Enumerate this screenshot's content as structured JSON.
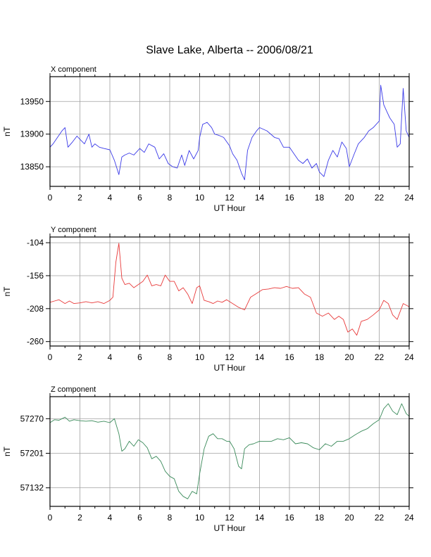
{
  "title": "Slave Lake, Alberta -- 2006/08/21",
  "chart_data": [
    {
      "type": "line",
      "panel_title": "X component",
      "xlabel": "UT Hour",
      "ylabel": "nT",
      "xlim": [
        0,
        24
      ],
      "ylim": [
        13820,
        13988
      ],
      "x_ticks": [
        0,
        2,
        4,
        6,
        8,
        10,
        12,
        14,
        16,
        18,
        20,
        22,
        24
      ],
      "y_ticks": [
        13850,
        13900,
        13950
      ],
      "grid": true,
      "color": "#3a3ae8",
      "series": [
        {
          "x": [
            0,
            0.2,
            0.5,
            0.8,
            1.0,
            1.2,
            1.5,
            1.8,
            2.0,
            2.3,
            2.6,
            2.8,
            3.0,
            3.3,
            3.6,
            4.0,
            4.3,
            4.6,
            4.8,
            5.0,
            5.3,
            5.6,
            6.0,
            6.3,
            6.6,
            7.0,
            7.3,
            7.6,
            7.9,
            8.2,
            8.5,
            8.8,
            9.0,
            9.3,
            9.6,
            9.9,
            10.0,
            10.2,
            10.5,
            10.8,
            11.0,
            11.3,
            11.6,
            12.0,
            12.2,
            12.5,
            12.8,
            13.0,
            13.2,
            13.5,
            13.8,
            14.0,
            14.5,
            15.0,
            15.3,
            15.6,
            16.0,
            16.3,
            16.6,
            16.9,
            17.2,
            17.5,
            17.8,
            18.0,
            18.3,
            18.6,
            18.9,
            19.2,
            19.5,
            19.8,
            20.0,
            20.3,
            20.6,
            21.0,
            21.3,
            21.6,
            22.0,
            22.1,
            22.3,
            22.5,
            22.7,
            23.0,
            23.2,
            23.4,
            23.6,
            23.8,
            24.0
          ],
          "values": [
            13880,
            13885,
            13895,
            13905,
            13910,
            13880,
            13888,
            13897,
            13892,
            13885,
            13900,
            13880,
            13885,
            13880,
            13878,
            13876,
            13860,
            13838,
            13865,
            13868,
            13871,
            13868,
            13878,
            13872,
            13885,
            13880,
            13862,
            13870,
            13855,
            13850,
            13848,
            13868,
            13852,
            13875,
            13862,
            13875,
            13895,
            13915,
            13918,
            13910,
            13900,
            13898,
            13895,
            13882,
            13870,
            13860,
            13840,
            13830,
            13875,
            13895,
            13905,
            13910,
            13905,
            13895,
            13893,
            13880,
            13880,
            13870,
            13860,
            13855,
            13862,
            13848,
            13855,
            13842,
            13835,
            13860,
            13875,
            13865,
            13888,
            13878,
            13850,
            13868,
            13885,
            13895,
            13905,
            13910,
            13920,
            13975,
            13945,
            13935,
            13925,
            13915,
            13880,
            13885,
            13970,
            13905,
            13895
          ]
        }
      ]
    },
    {
      "type": "line",
      "panel_title": "Y component",
      "xlabel": "UT Hour",
      "ylabel": "nT",
      "xlim": [
        0,
        24
      ],
      "ylim": [
        -267,
        -95
      ],
      "x_ticks": [
        0,
        2,
        4,
        6,
        8,
        10,
        12,
        14,
        16,
        18,
        20,
        22,
        24
      ],
      "y_ticks": [
        -104,
        -156,
        -208,
        -260
      ],
      "grid": true,
      "color": "#e83a3a",
      "series": [
        {
          "x": [
            0,
            0.3,
            0.6,
            1.0,
            1.3,
            1.6,
            2.0,
            2.4,
            2.8,
            3.2,
            3.6,
            4.0,
            4.2,
            4.4,
            4.5,
            4.6,
            4.8,
            5.0,
            5.3,
            5.6,
            5.9,
            6.2,
            6.5,
            6.8,
            7.1,
            7.4,
            7.7,
            8.0,
            8.3,
            8.6,
            8.9,
            9.2,
            9.5,
            9.8,
            10.0,
            10.3,
            10.6,
            10.9,
            11.2,
            11.5,
            11.8,
            12.2,
            12.6,
            13.0,
            13.4,
            13.8,
            14.2,
            14.6,
            15.0,
            15.4,
            15.8,
            16.2,
            16.6,
            17.0,
            17.4,
            17.8,
            18.2,
            18.6,
            19.0,
            19.3,
            19.6,
            19.9,
            20.2,
            20.5,
            20.8,
            21.2,
            21.6,
            22.0,
            22.3,
            22.6,
            22.9,
            23.2,
            23.6,
            24.0
          ],
          "values": [
            -198,
            -196,
            -194,
            -200,
            -196,
            -200,
            -199,
            -197,
            -199,
            -197,
            -200,
            -195,
            -190,
            -135,
            -120,
            -105,
            -160,
            -170,
            -168,
            -175,
            -170,
            -165,
            -155,
            -172,
            -170,
            -172,
            -155,
            -165,
            -165,
            -180,
            -175,
            -185,
            -200,
            -175,
            -172,
            -195,
            -197,
            -200,
            -196,
            -198,
            -194,
            -200,
            -206,
            -210,
            -190,
            -184,
            -178,
            -177,
            -175,
            -176,
            -173,
            -176,
            -175,
            -185,
            -190,
            -215,
            -220,
            -215,
            -225,
            -220,
            -225,
            -245,
            -240,
            -250,
            -228,
            -225,
            -218,
            -210,
            -195,
            -200,
            -218,
            -225,
            -200,
            -205
          ]
        }
      ]
    },
    {
      "type": "line",
      "panel_title": "Z component",
      "xlabel": "UT Hour",
      "ylabel": "nT",
      "xlim": [
        0,
        24
      ],
      "ylim": [
        57095,
        57314
      ],
      "x_ticks": [
        0,
        2,
        4,
        6,
        8,
        10,
        12,
        14,
        16,
        18,
        20,
        22,
        24
      ],
      "y_ticks": [
        57132,
        57201,
        57270
      ],
      "grid": true,
      "color": "#3a8a5a",
      "series": [
        {
          "x": [
            0,
            0.3,
            0.6,
            1.0,
            1.3,
            1.6,
            2.0,
            2.4,
            2.8,
            3.2,
            3.6,
            4.0,
            4.3,
            4.6,
            4.8,
            5.0,
            5.3,
            5.6,
            5.9,
            6.2,
            6.5,
            6.8,
            7.1,
            7.4,
            7.7,
            8.0,
            8.3,
            8.6,
            8.9,
            9.2,
            9.5,
            9.8,
            10.0,
            10.3,
            10.6,
            10.9,
            11.2,
            11.5,
            11.8,
            12.0,
            12.3,
            12.6,
            12.8,
            13.0,
            13.3,
            13.6,
            14.0,
            14.4,
            14.8,
            15.2,
            15.6,
            16.0,
            16.4,
            16.8,
            17.2,
            17.6,
            18.0,
            18.4,
            18.8,
            19.2,
            19.6,
            20.0,
            20.4,
            20.8,
            21.2,
            21.6,
            22.0,
            22.3,
            22.6,
            22.9,
            23.2,
            23.5,
            23.8,
            24.0
          ],
          "values": [
            57262,
            57268,
            57267,
            57273,
            57265,
            57268,
            57266,
            57265,
            57266,
            57263,
            57265,
            57262,
            57270,
            57240,
            57205,
            57210,
            57225,
            57215,
            57228,
            57222,
            57212,
            57190,
            57195,
            57185,
            57165,
            57155,
            57150,
            57125,
            57115,
            57110,
            57125,
            57120,
            57160,
            57210,
            57235,
            57240,
            57230,
            57230,
            57225,
            57225,
            57210,
            57175,
            57170,
            57210,
            57218,
            57220,
            57225,
            57225,
            57225,
            57230,
            57228,
            57232,
            57220,
            57222,
            57220,
            57212,
            57208,
            57220,
            57215,
            57225,
            57225,
            57230,
            57238,
            57245,
            57250,
            57260,
            57268,
            57290,
            57300,
            57285,
            57278,
            57300,
            57280,
            57275
          ]
        }
      ]
    }
  ]
}
